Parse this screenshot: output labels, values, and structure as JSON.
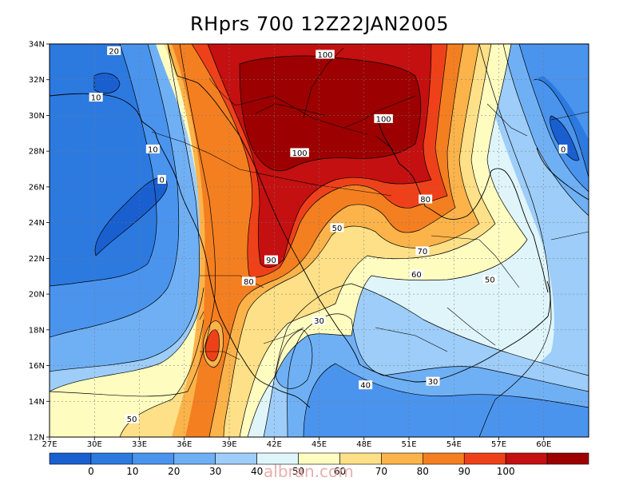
{
  "map": {
    "title": "RHprs 700 12Z22JAN2005",
    "lon_range": [
      27,
      63
    ],
    "lat_range": [
      12,
      34
    ],
    "lon_ticks": [
      "27E",
      "30E",
      "33E",
      "36E",
      "39E",
      "42E",
      "45E",
      "48E",
      "51E",
      "54E",
      "57E",
      "60E"
    ],
    "lat_ticks": [
      "12N",
      "14N",
      "16N",
      "18N",
      "20N",
      "22N",
      "24N",
      "26N",
      "28N",
      "30N",
      "32N",
      "34N"
    ],
    "contour_labels": [
      {
        "text": "20",
        "lon": 31.3,
        "lat": 33.6
      },
      {
        "text": "10",
        "lon": 30.1,
        "lat": 31.0
      },
      {
        "text": "10",
        "lon": 33.9,
        "lat": 28.1
      },
      {
        "text": "0",
        "lon": 34.5,
        "lat": 26.4
      },
      {
        "text": "100",
        "lon": 45.4,
        "lat": 33.4
      },
      {
        "text": "100",
        "lon": 49.3,
        "lat": 29.8
      },
      {
        "text": "100",
        "lon": 43.7,
        "lat": 27.9
      },
      {
        "text": "80",
        "lon": 52.1,
        "lat": 25.3
      },
      {
        "text": "50",
        "lon": 46.2,
        "lat": 23.7
      },
      {
        "text": "70",
        "lon": 51.9,
        "lat": 22.4
      },
      {
        "text": "60",
        "lon": 51.5,
        "lat": 21.1
      },
      {
        "text": "90",
        "lon": 41.8,
        "lat": 21.9
      },
      {
        "text": "80",
        "lon": 40.3,
        "lat": 20.7
      },
      {
        "text": "50",
        "lon": 56.4,
        "lat": 20.8
      },
      {
        "text": "30",
        "lon": 45.0,
        "lat": 18.5
      },
      {
        "text": "40",
        "lon": 48.1,
        "lat": 14.9
      },
      {
        "text": "30",
        "lon": 52.6,
        "lat": 15.1
      },
      {
        "text": "50",
        "lon": 32.5,
        "lat": 13.0
      },
      {
        "text": "0",
        "lon": 61.3,
        "lat": 28.1
      }
    ]
  },
  "colorbar": {
    "labels": [
      "0",
      "10",
      "20",
      "30",
      "40",
      "50",
      "60",
      "70",
      "80",
      "90",
      "100"
    ],
    "colors": [
      "#1a5fd0",
      "#2c7ae0",
      "#4a94ee",
      "#6fb0f5",
      "#9dcdf8",
      "#dff5fa",
      "#fffcc0",
      "#fde087",
      "#fbb34a",
      "#f47f20",
      "#ef4119",
      "#c41010",
      "#9c0000"
    ]
  },
  "watermark": {
    "text": "albran.com"
  }
}
